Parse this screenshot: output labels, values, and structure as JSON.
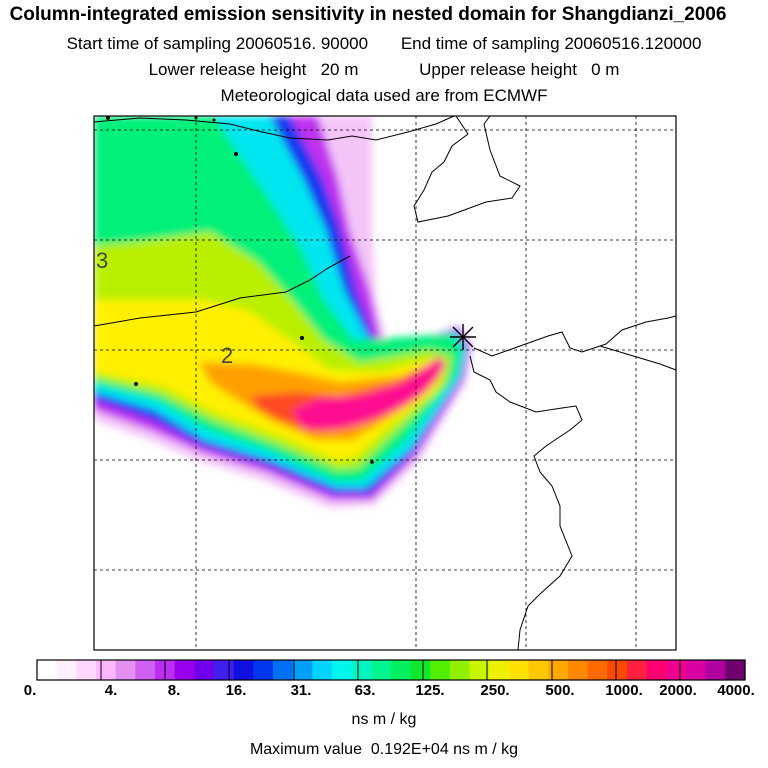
{
  "header": {
    "title": "Column-integrated emission sensitivity in nested domain for Shangdianzi_2006",
    "start_label": "Start time of sampling",
    "start_value": "20060516. 90000",
    "end_label": "End time of sampling",
    "end_value": "20060516.120000",
    "lower_label": "Lower release height",
    "lower_value": "20 m",
    "upper_label": "Upper release height",
    "upper_value": "0 m",
    "met_line": "Meteorological data used are from ECMWF"
  },
  "map": {
    "contour_labels": [
      "3",
      "2"
    ],
    "release_site": "Shangdianzi"
  },
  "colorbar": {
    "ticks": [
      "0.",
      "4.",
      "8.",
      "16.",
      "31.",
      "63.",
      "125.",
      "250.",
      "500.",
      "1000.",
      "2000.",
      "4000."
    ],
    "colors": [
      "#ffffff",
      "#fff0ff",
      "#ffd8ff",
      "#ffb8ff",
      "#e490f0",
      "#d060f0",
      "#bb2ef2",
      "#9900ee",
      "#7000ee",
      "#4020ee",
      "#1010e0",
      "#0038f0",
      "#0070f5",
      "#00a0f8",
      "#00d4fa",
      "#00f5ee",
      "#00f5c0",
      "#00f590",
      "#00f060",
      "#10e830",
      "#50f000",
      "#90f000",
      "#c8f500",
      "#eef000",
      "#ffe000",
      "#ffc800",
      "#ffa800",
      "#ff8800",
      "#ff6a00",
      "#ff4800",
      "#ff2040",
      "#ff0070",
      "#f00090",
      "#d800a0",
      "#b000a0",
      "#700070"
    ],
    "units": "ns m / kg",
    "max_label": "Maximum value",
    "max_value": "0.192E+04 ns m / kg"
  }
}
